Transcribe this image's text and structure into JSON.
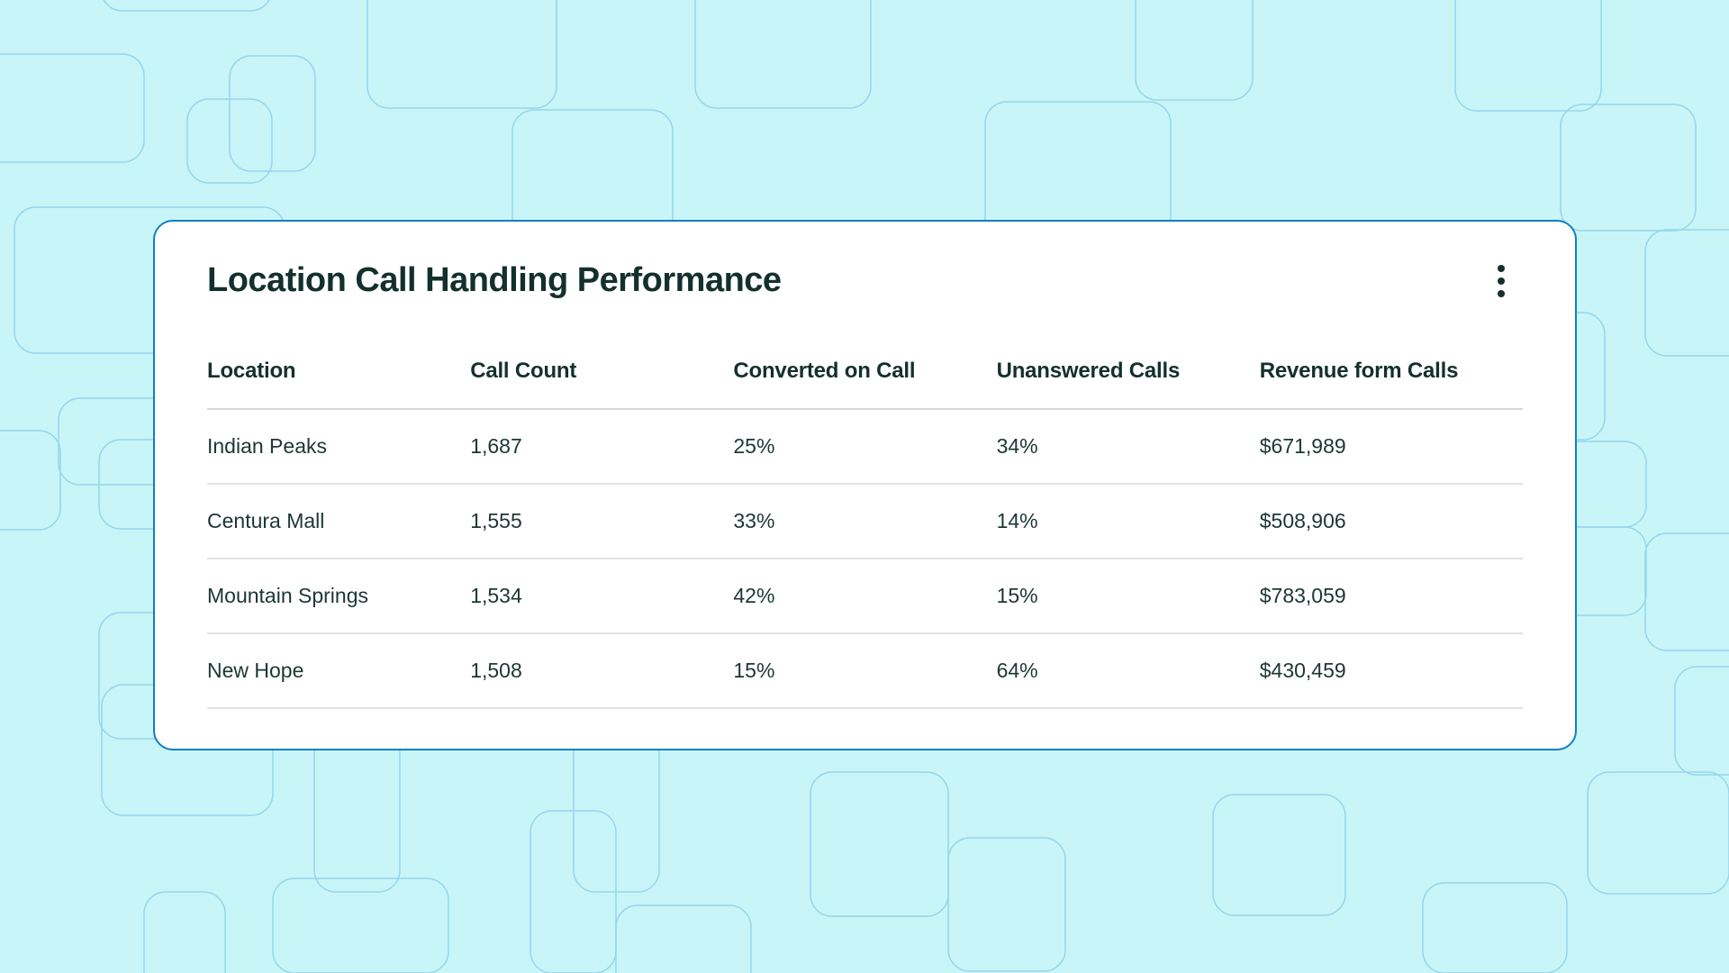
{
  "card": {
    "title": "Location Call Handling Performance",
    "menu_icon": "kebab-menu",
    "table": {
      "columns": [
        "Location",
        "Call Count",
        "Converted on Call",
        "Unanswered Calls",
        "Revenue form Calls"
      ],
      "rows": [
        [
          "Indian Peaks",
          "1,687",
          "25%",
          "34%",
          "$671,989"
        ],
        [
          "Centura Mall",
          "1,555",
          "33%",
          "14%",
          "$508,906"
        ],
        [
          "Mountain Springs",
          "1,534",
          "42%",
          "15%",
          "$783,059"
        ],
        [
          "New Hope",
          "1,508",
          "15%",
          "64%",
          "$430,459"
        ]
      ]
    }
  },
  "colors": {
    "page_background": "#c8f5f7",
    "pattern_stroke": "#96d5ee",
    "card_border": "#137fc2",
    "card_background": "#ffffff",
    "heading_text": "#13302d",
    "body_text": "#1c3733",
    "row_divider": "#e2e2e2"
  }
}
